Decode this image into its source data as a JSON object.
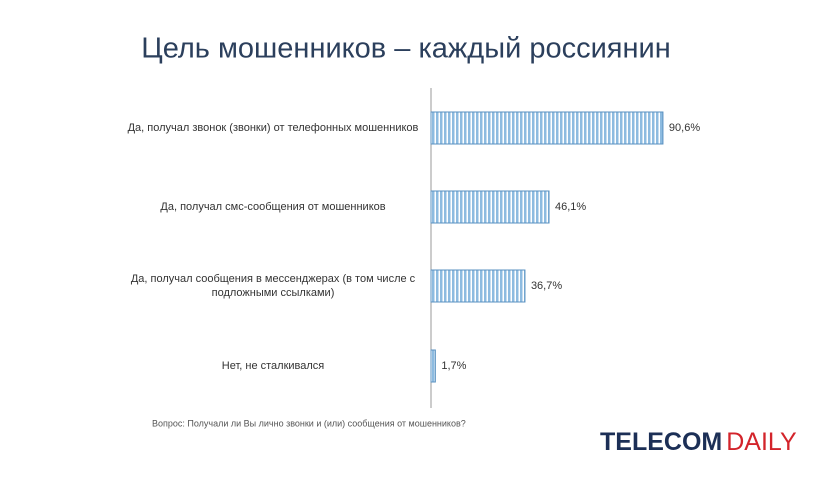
{
  "chart_data": {
    "type": "bar",
    "orientation": "horizontal",
    "title": "Цель мошенников – каждый россиянин",
    "categories": [
      "Да, получал звонок (звонки) от телефонных мошенников",
      "Да, получал смс-сообщения от мошенников",
      "Да, получал сообщения в мессенджерах (в том числе с подложными ссылками)",
      "Нет, не сталкивался"
    ],
    "values": [
      90.6,
      46.1,
      36.7,
      1.7
    ],
    "value_labels": [
      "90,6%",
      "46,1%",
      "36,7%",
      "1,7%"
    ],
    "color": "#8dbbe0",
    "xlim": [
      0,
      100
    ],
    "note": "Вопрос: Получали ли Вы лично звонки и (или) сообщения от мошенников?"
  },
  "logo": {
    "part1": "TELECOM",
    "part2": "DAILY"
  }
}
